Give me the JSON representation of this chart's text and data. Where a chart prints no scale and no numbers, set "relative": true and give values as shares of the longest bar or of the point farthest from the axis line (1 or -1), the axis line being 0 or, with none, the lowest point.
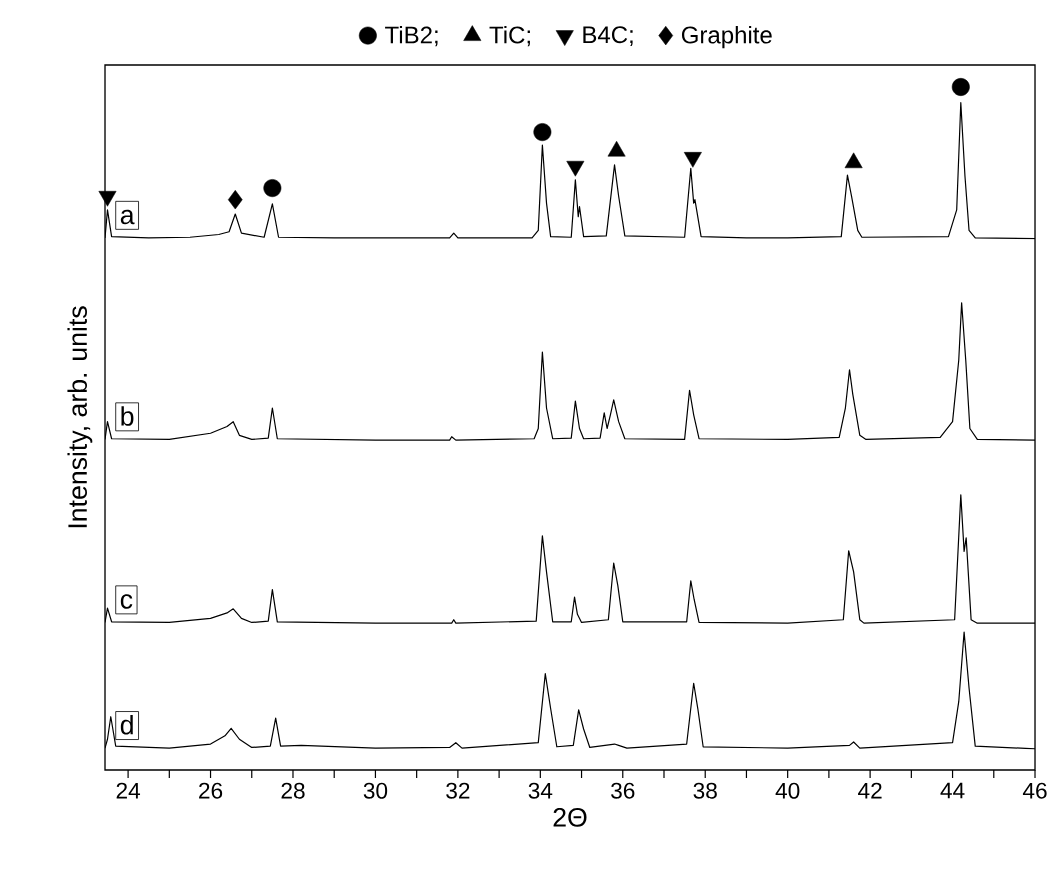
{
  "chart_data": {
    "type": "line",
    "relative": true,
    "xlabel": "2Θ",
    "ylabel": "Intensity, arb. units",
    "legend": "top",
    "xlim": [
      23.44,
      46
    ],
    "xticks": [
      24,
      {
        "value": 25,
        "label": null
      },
      26,
      {
        "value": 27,
        "label": null
      },
      28,
      {
        "value": 29,
        "label": null
      },
      30,
      {
        "value": 31,
        "label": null
      },
      32,
      {
        "value": 33,
        "label": null
      },
      34,
      {
        "value": 35,
        "label": null
      },
      36,
      {
        "value": 37,
        "label": null
      },
      38,
      {
        "value": 39,
        "label": null
      },
      40,
      {
        "value": 41,
        "label": null
      },
      42,
      {
        "value": 43,
        "label": null
      },
      44,
      {
        "value": 45,
        "label": null
      },
      46
    ],
    "series": [
      {
        "name": "a",
        "color": "#000000",
        "x": [
          23.44,
          23.5,
          23.6,
          24.5,
          25.5,
          26.2,
          26.45,
          26.6,
          26.75,
          27.3,
          27.5,
          27.65,
          29,
          30.5,
          31.8,
          31.9,
          32.0,
          33.8,
          33.95,
          34.05,
          34.15,
          34.25,
          34.75,
          34.85,
          34.92,
          34.95,
          35.05,
          35.6,
          35.75,
          35.8,
          35.9,
          36.05,
          37.5,
          37.65,
          37.72,
          37.75,
          37.9,
          39,
          40,
          41.3,
          41.45,
          41.55,
          41.7,
          41.8,
          43.9,
          44.1,
          44.2,
          44.3,
          44.4,
          44.55,
          46
        ],
        "values": [
          0.779,
          0.82,
          0.781,
          0.779,
          0.78,
          0.784,
          0.788,
          0.814,
          0.786,
          0.78,
          0.829,
          0.78,
          0.779,
          0.779,
          0.779,
          0.786,
          0.779,
          0.779,
          0.79,
          0.915,
          0.83,
          0.781,
          0.78,
          0.864,
          0.81,
          0.825,
          0.781,
          0.782,
          0.86,
          0.886,
          0.84,
          0.782,
          0.78,
          0.881,
          0.83,
          0.835,
          0.781,
          0.779,
          0.779,
          0.781,
          0.871,
          0.84,
          0.79,
          0.78,
          0.781,
          0.82,
          0.977,
          0.87,
          0.79,
          0.779,
          0.778
        ]
      },
      {
        "name": "b",
        "color": "#000000",
        "x": [
          23.44,
          23.5,
          23.6,
          25,
          26,
          26.4,
          26.55,
          26.7,
          27.0,
          27.4,
          27.5,
          27.62,
          30,
          31.8,
          31.85,
          31.95,
          33.85,
          33.95,
          34.05,
          34.15,
          34.3,
          34.75,
          34.85,
          34.95,
          35.05,
          35.45,
          35.55,
          35.62,
          35.7,
          35.78,
          35.9,
          36.05,
          37.5,
          37.62,
          37.72,
          37.85,
          40,
          41.25,
          41.4,
          41.5,
          41.58,
          41.75,
          41.9,
          43.7,
          44.0,
          44.15,
          44.22,
          44.32,
          44.42,
          44.6,
          46
        ],
        "values": [
          0.484,
          0.51,
          0.485,
          0.484,
          0.493,
          0.503,
          0.51,
          0.49,
          0.484,
          0.486,
          0.53,
          0.485,
          0.483,
          0.483,
          0.488,
          0.483,
          0.485,
          0.5,
          0.612,
          0.53,
          0.485,
          0.486,
          0.54,
          0.5,
          0.485,
          0.486,
          0.523,
          0.5,
          0.52,
          0.542,
          0.51,
          0.485,
          0.484,
          0.556,
          0.52,
          0.485,
          0.484,
          0.487,
          0.53,
          0.586,
          0.55,
          0.49,
          0.484,
          0.487,
          0.51,
          0.6,
          0.684,
          0.6,
          0.5,
          0.484,
          0.483
        ]
      },
      {
        "name": "c",
        "color": "#000000",
        "x": [
          23.44,
          23.5,
          23.6,
          25,
          26,
          26.4,
          26.55,
          26.75,
          27.0,
          27.4,
          27.5,
          27.62,
          30,
          31.85,
          31.9,
          31.95,
          33.9,
          34.05,
          34.15,
          34.3,
          34.75,
          34.83,
          34.9,
          35.0,
          35.65,
          35.78,
          35.88,
          36.0,
          37.55,
          37.65,
          37.73,
          37.85,
          40,
          41.35,
          41.48,
          41.6,
          41.75,
          41.85,
          44.05,
          44.2,
          44.28,
          44.33,
          44.45,
          44.6,
          46
        ],
        "values": [
          0.216,
          0.237,
          0.217,
          0.216,
          0.222,
          0.23,
          0.236,
          0.222,
          0.216,
          0.218,
          0.264,
          0.217,
          0.215,
          0.215,
          0.22,
          0.215,
          0.218,
          0.343,
          0.29,
          0.217,
          0.217,
          0.253,
          0.228,
          0.216,
          0.22,
          0.303,
          0.27,
          0.217,
          0.217,
          0.277,
          0.25,
          0.216,
          0.215,
          0.22,
          0.321,
          0.29,
          0.22,
          0.215,
          0.22,
          0.403,
          0.32,
          0.34,
          0.22,
          0.215,
          0.215
        ]
      },
      {
        "name": "d",
        "color": "#000000",
        "x": [
          23.44,
          23.5,
          23.58,
          23.7,
          25,
          26,
          26.35,
          26.5,
          26.7,
          27.0,
          27.45,
          27.58,
          27.7,
          28.2,
          30,
          31.8,
          31.95,
          32.1,
          33.95,
          34.12,
          34.25,
          34.4,
          34.8,
          34.93,
          35.05,
          35.2,
          35.8,
          35.9,
          36.1,
          37.55,
          37.72,
          37.82,
          37.95,
          40,
          41.5,
          41.6,
          41.75,
          44.0,
          44.15,
          44.28,
          44.4,
          44.55,
          46
        ],
        "values": [
          0.032,
          0.045,
          0.078,
          0.035,
          0.032,
          0.038,
          0.05,
          0.061,
          0.045,
          0.033,
          0.035,
          0.076,
          0.035,
          0.036,
          0.032,
          0.033,
          0.04,
          0.032,
          0.04,
          0.141,
          0.09,
          0.034,
          0.036,
          0.088,
          0.06,
          0.033,
          0.038,
          0.036,
          0.032,
          0.038,
          0.127,
          0.09,
          0.034,
          0.032,
          0.036,
          0.041,
          0.032,
          0.04,
          0.1,
          0.202,
          0.12,
          0.035,
          0.031
        ]
      },
      {
        "name": "TiB2;",
        "type": "scatter",
        "marker": "circle",
        "color": "#000000",
        "x": [
          27.5,
          34.05,
          44.2
        ],
        "values": [
          0.852,
          0.934,
          1.0
        ]
      },
      {
        "name": "TiC;",
        "type": "scatter",
        "marker": "triangle",
        "color": "#000000",
        "x": [
          35.85,
          41.6
        ],
        "values": [
          0.906,
          0.889
        ]
      },
      {
        "name": "B4C;",
        "type": "scatter",
        "marker": "triangle-down",
        "color": "#000000",
        "x": [
          23.5,
          34.85,
          37.7
        ],
        "values": [
          0.84,
          0.884,
          0.897
        ]
      },
      {
        "name": "Graphite",
        "type": "scatter",
        "marker": "diamond",
        "color": "#000000",
        "x": [
          26.6
        ],
        "values": [
          0.835
        ]
      }
    ]
  }
}
